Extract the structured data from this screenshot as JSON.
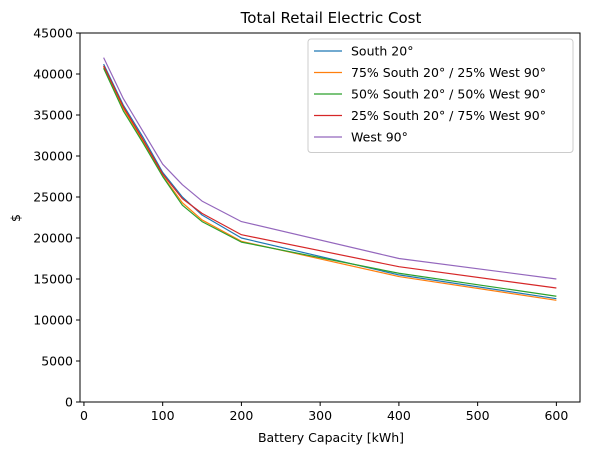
{
  "chart_data": {
    "type": "line",
    "title": "Total Retail Electric Cost",
    "xlabel": "Battery Capacity [kWh]",
    "ylabel": "$",
    "xlim": [
      -5,
      630
    ],
    "ylim": [
      0,
      45000
    ],
    "xticks": [
      0,
      100,
      200,
      300,
      400,
      500,
      600
    ],
    "yticks": [
      0,
      5000,
      10000,
      15000,
      20000,
      25000,
      30000,
      35000,
      40000,
      45000
    ],
    "x": [
      25,
      50,
      75,
      100,
      125,
      150,
      200,
      400,
      600
    ],
    "legend_position": "top-right",
    "grid": false,
    "series": [
      {
        "name": "South 20°",
        "color": "#1f77b4",
        "values": [
          41200,
          36200,
          32300,
          28000,
          25000,
          22800,
          20000,
          15500,
          12600
        ]
      },
      {
        "name": "75% South 20° / 25% West 90°",
        "color": "#ff7f0e",
        "values": [
          40900,
          35800,
          31800,
          27600,
          24300,
          22200,
          19600,
          15300,
          12400
        ]
      },
      {
        "name": "50% South 20° / 50% West 90°",
        "color": "#2ca02c",
        "values": [
          40700,
          35500,
          31600,
          27500,
          24000,
          22000,
          19500,
          15700,
          12900
        ]
      },
      {
        "name": "25% South 20° / 75% West 90°",
        "color": "#d62728",
        "values": [
          41000,
          36000,
          32000,
          27800,
          24800,
          23000,
          20400,
          16500,
          13900
        ]
      },
      {
        "name": "West 90°",
        "color": "#9467bd",
        "values": [
          42000,
          37000,
          33000,
          29000,
          26500,
          24500,
          22000,
          17500,
          15000
        ]
      }
    ]
  }
}
